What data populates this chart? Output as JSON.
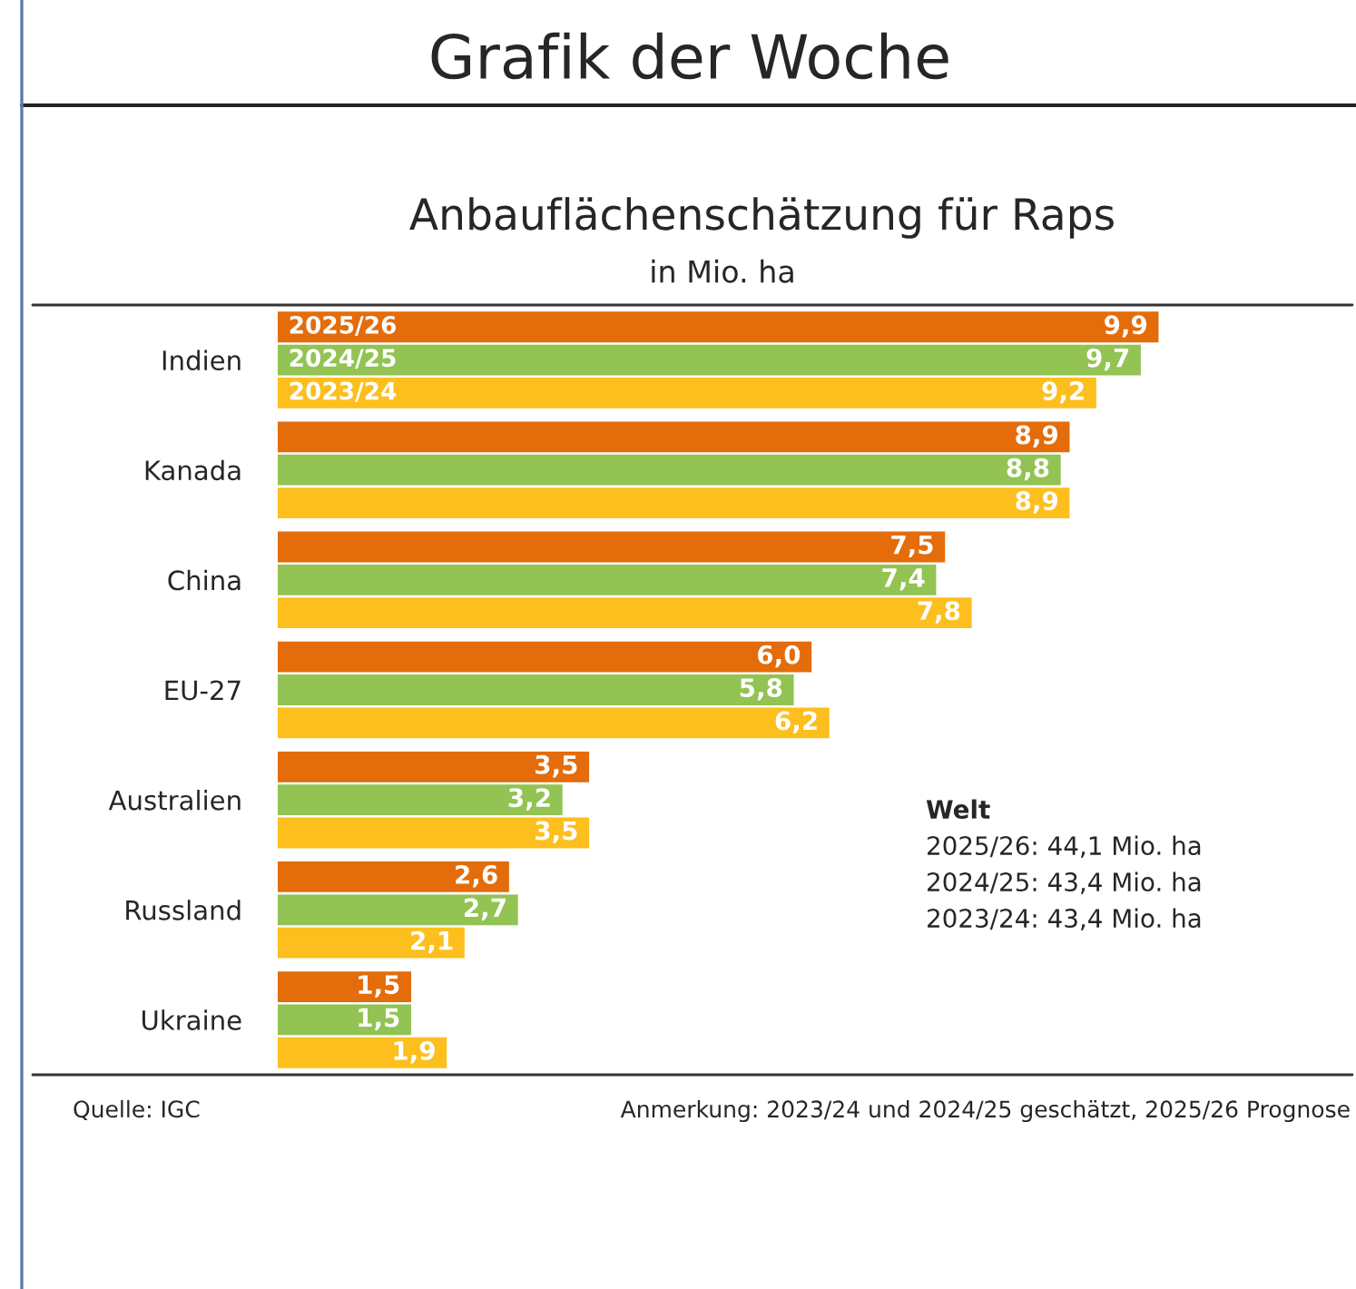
{
  "chart_data": {
    "type": "bar",
    "orientation": "horizontal",
    "title": "Anbauflächenschätzung für Raps",
    "subtitle": "in Mio. ha",
    "categories": [
      "Indien",
      "Kanada",
      "China",
      "EU-27",
      "Australien",
      "Russland",
      "Ukraine"
    ],
    "series": [
      {
        "name": "2025/26",
        "color": "#e46c0a",
        "values": [
          9.9,
          8.9,
          7.5,
          6.0,
          3.5,
          2.6,
          1.5
        ],
        "value_labels": [
          "9,9",
          "8,9",
          "7,5",
          "6,0",
          "3,5",
          "2,6",
          "1,5"
        ]
      },
      {
        "name": "2024/25",
        "color": "#92c353",
        "values": [
          9.7,
          8.8,
          7.4,
          5.8,
          3.2,
          2.7,
          1.5
        ],
        "value_labels": [
          "9,7",
          "8,8",
          "7,4",
          "5,8",
          "3,2",
          "2,7",
          "1,5"
        ]
      },
      {
        "name": "2023/24",
        "color": "#fdbf1e",
        "values": [
          9.2,
          8.9,
          7.8,
          6.2,
          3.5,
          2.1,
          1.9
        ],
        "value_labels": [
          "9,2",
          "8,9",
          "7,8",
          "6,2",
          "3,5",
          "2,1",
          "1,9"
        ]
      }
    ],
    "annotations": [
      "Grafik der Woche",
      "Welt",
      "2025/26: 44,1 Mio. ha",
      "2024/25: 43,4 Mio. ha",
      "2023/24: 43,4 Mio. ha",
      "Quelle: IGC",
      "Anmerkung: 2023/24 und 2024/25 geschätzt, 2025/26 Prognose"
    ]
  }
}
